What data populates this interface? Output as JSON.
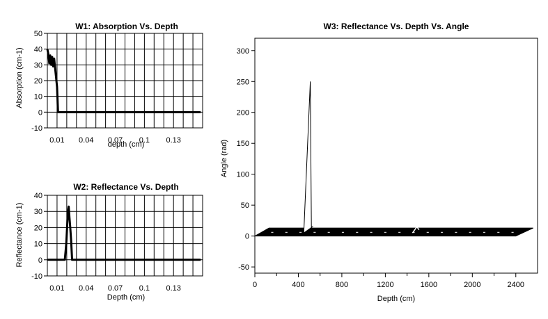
{
  "chart_data": [
    {
      "id": "w1",
      "type": "line",
      "title": "W1: Absorption Vs. Depth",
      "xlabel": "depth (cm)",
      "ylabel": "Absorption (cm-1)",
      "xlim": [
        0,
        0.16
      ],
      "ylim": [
        -10,
        50
      ],
      "x_ticks": [
        {
          "value": 0.01,
          "label": "0.01"
        },
        {
          "value": 0.04,
          "label": "0.04"
        },
        {
          "value": 0.07,
          "label": "0.07"
        },
        {
          "value": 0.1,
          "label": "0.1"
        },
        {
          "value": 0.13,
          "label": "0.13"
        }
      ],
      "y_ticks": [
        50,
        40,
        30,
        20,
        10,
        0,
        -10
      ],
      "grid": true,
      "series": [
        {
          "x": [
            0.0,
            0.001,
            0.002,
            0.003,
            0.004,
            0.005,
            0.006,
            0.007,
            0.008,
            0.009,
            0.01,
            0.011,
            0.013,
            0.158
          ],
          "y": [
            40,
            37,
            31,
            36,
            30,
            35,
            29,
            34,
            28,
            22,
            16,
            0,
            0,
            0
          ]
        }
      ]
    },
    {
      "id": "w2",
      "type": "line",
      "title": "W2: Reflectance Vs. Depth",
      "xlabel": "Depth (cm)",
      "ylabel": "Reflectance (cm-1)",
      "xlim": [
        0,
        0.16
      ],
      "ylim": [
        -10,
        40
      ],
      "x_ticks": [
        {
          "value": 0.01,
          "label": "0.01"
        },
        {
          "value": 0.04,
          "label": "0.04"
        },
        {
          "value": 0.07,
          "label": "0.07"
        },
        {
          "value": 0.1,
          "label": "0.1"
        },
        {
          "value": 0.13,
          "label": "0.13"
        }
      ],
      "y_ticks": [
        40,
        30,
        20,
        10,
        0,
        -10
      ],
      "grid": true,
      "series": [
        {
          "x": [
            0.0,
            0.018,
            0.0195,
            0.0205,
            0.0212,
            0.022,
            0.0228,
            0.0236,
            0.0245,
            0.0255,
            0.158
          ],
          "y": [
            0,
            0,
            10,
            22,
            30,
            33,
            26,
            20,
            12,
            0,
            0
          ]
        }
      ]
    },
    {
      "id": "w3",
      "type": "line",
      "title": "W3: Reflectance Vs. Depth Vs. Angle",
      "xlabel": "Depth (cm)",
      "ylabel": "Angle (rad)",
      "xlim": [
        0,
        2600
      ],
      "ylim": [
        -60,
        320
      ],
      "x_ticks": [
        {
          "value": 0,
          "label": "0"
        },
        {
          "value": 400,
          "label": "400"
        },
        {
          "value": 800,
          "label": "800"
        },
        {
          "value": 1200,
          "label": "1200"
        },
        {
          "value": 1600,
          "label": "1600"
        },
        {
          "value": 2000,
          "label": "2000"
        },
        {
          "value": 2400,
          "label": "2400"
        }
      ],
      "x_minor_ticks": [
        200,
        600,
        1000,
        1400,
        1800,
        2200
      ],
      "y_ticks": [
        300,
        250,
        200,
        150,
        100,
        50,
        0,
        -50
      ],
      "grid": false,
      "surface": {
        "front_line": {
          "x": [
            0,
            2400
          ],
          "y": [
            0,
            0
          ]
        },
        "back_line": {
          "x": [
            130,
            2560
          ],
          "y": [
            13,
            13
          ]
        },
        "peak": {
          "x": [
            450,
            510,
            520,
            530
          ],
          "y": [
            5,
            250,
            15,
            15
          ]
        },
        "small_peak": {
          "x": [
            1450,
            1490,
            1510
          ],
          "y": [
            5,
            15,
            10
          ]
        }
      }
    }
  ]
}
